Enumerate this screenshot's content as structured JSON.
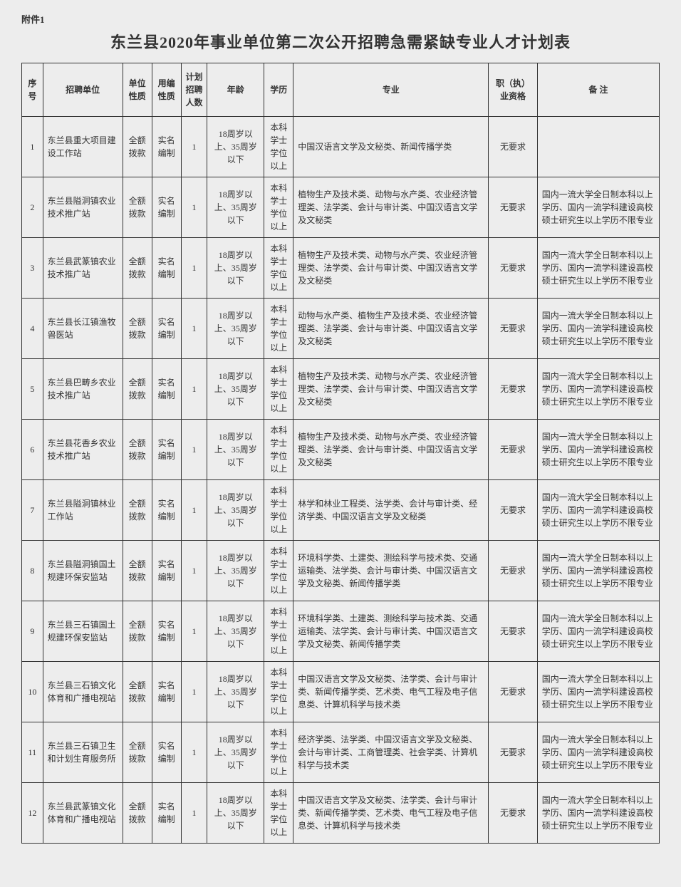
{
  "attachment_label": "附件1",
  "title": "东兰县2020年事业单位第二次公开招聘急需紧缺专业人才计划表",
  "columns": [
    "序号",
    "招聘单位",
    "单位性质",
    "用编性质",
    "计划招聘人数",
    "年龄",
    "学历",
    "专业",
    "职（执）业资格",
    "备 注"
  ],
  "common": {
    "unit_nature": "全额拨款",
    "staff_nature": "实名编制",
    "age": "18周岁以上、35周岁以下",
    "edu": "本科学士学位以上",
    "qual": "无要求",
    "note_std": "国内一流大学全日制本科以上学历、国内一流学科建设高校硕士研究生以上学历不限专业"
  },
  "rows": [
    {
      "seq": "1",
      "unit": "东兰县重大项目建设工作站",
      "num": "1",
      "major": "中国汉语言文学及文秘类、新闻传播学类",
      "note": ""
    },
    {
      "seq": "2",
      "unit": "东兰县隘洞镇农业技术推广站",
      "num": "1",
      "major": "植物生产及技术类、动物与水产类、农业经济管理类、法学类、会计与审计类、中国汉语言文学及文秘类",
      "note": "@std"
    },
    {
      "seq": "3",
      "unit": "东兰县武篆镇农业技术推广站",
      "num": "1",
      "major": "植物生产及技术类、动物与水产类、农业经济管理类、法学类、会计与审计类、中国汉语言文学及文秘类",
      "note": "@std"
    },
    {
      "seq": "4",
      "unit": "东兰县长江镇渔牧兽医站",
      "num": "1",
      "major": "动物与水产类、植物生产及技术类、农业经济管理类、法学类、会计与审计类、中国汉语言文学及文秘类",
      "note": "@std"
    },
    {
      "seq": "5",
      "unit": "东兰县巴畴乡农业技术推广站",
      "num": "1",
      "major": "植物生产及技术类、动物与水产类、农业经济管理类、法学类、会计与审计类、中国汉语言文学及文秘类",
      "note": "@std"
    },
    {
      "seq": "6",
      "unit": "东兰县花香乡农业技术推广站",
      "num": "1",
      "major": "植物生产及技术类、动物与水产类、农业经济管理类、法学类、会计与审计类、中国汉语言文学及文秘类",
      "note": "@std"
    },
    {
      "seq": "7",
      "unit": "东兰县隘洞镇林业工作站",
      "num": "1",
      "major": "林学和林业工程类、法学类、会计与审计类、经济学类、中国汉语言文学及文秘类",
      "note": "@std"
    },
    {
      "seq": "8",
      "unit": "东兰县隘洞镇国土规建环保安监站",
      "num": "1",
      "major": "环境科学类、土建类、测绘科学与技术类、交通运输类、法学类、会计与审计类、中国汉语言文学及文秘类、新闻传播学类",
      "note": "@std"
    },
    {
      "seq": "9",
      "unit": "东兰县三石镇国土规建环保安监站",
      "num": "1",
      "major": "环境科学类、土建类、测绘科学与技术类、交通运输类、法学类、会计与审计类、中国汉语言文学及文秘类、新闻传播学类",
      "note": "@std"
    },
    {
      "seq": "10",
      "unit": "东兰县三石镇文化体育和广播电视站",
      "num": "1",
      "major": "中国汉语言文学及文秘类、法学类、会计与审计类、新闻传播学类、艺术类、电气工程及电子信息类、计算机科学与技术类",
      "note": "@std"
    },
    {
      "seq": "11",
      "unit": "东兰县三石镇卫生和计划生育服务所",
      "num": "1",
      "major": "经济学类、法学类、中国汉语言文学及文秘类、会计与审计类、工商管理类、社会学类、计算机科学与技术类",
      "note": "@std"
    },
    {
      "seq": "12",
      "unit": "东兰县武篆镇文化体育和广播电视站",
      "num": "1",
      "major": "中国汉语言文学及文秘类、法学类、会计与审计类、新闻传播学类、艺术类、电气工程及电子信息类、计算机科学与技术类",
      "note": "@std"
    }
  ]
}
